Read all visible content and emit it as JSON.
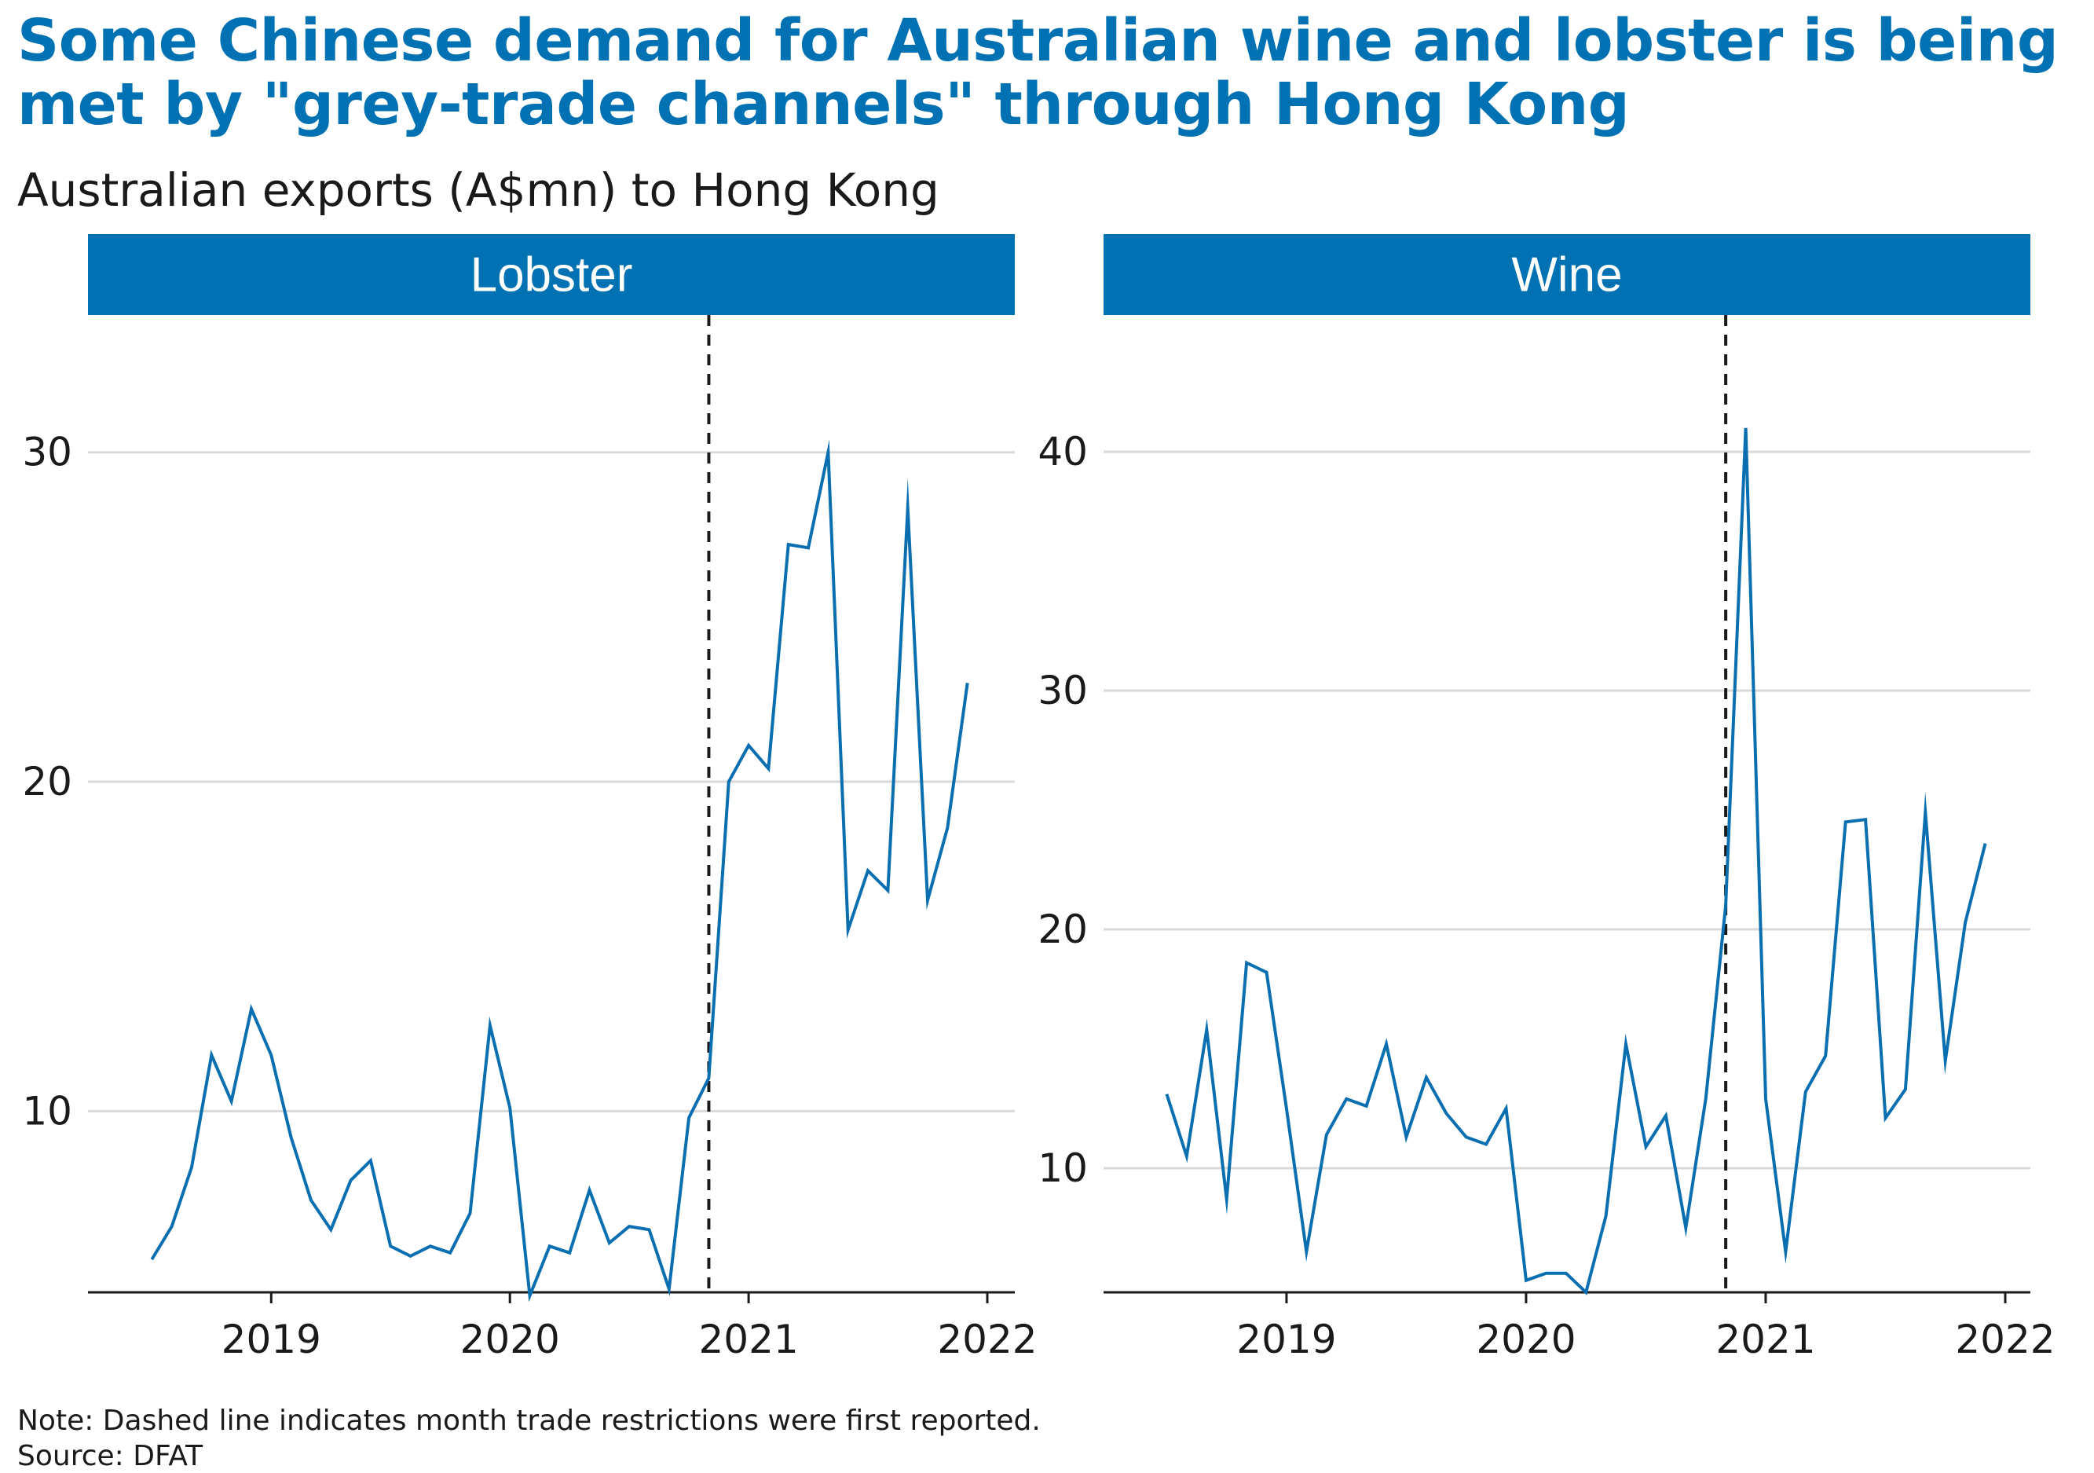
{
  "title": "Some Chinese demand for Australian wine and lobster is being met by \"grey-trade channels\" through Hong Kong",
  "subtitle": "Australian exports (A$mn) to Hong Kong",
  "note": "Note: Dashed line indicates month trade restrictions were first reported.",
  "source": "Source: DFAT",
  "colors": {
    "accent": "#0071b2",
    "line": "#0a6fb0",
    "grid": "#d9d9d9",
    "text": "#1a1a1a"
  },
  "chart_data": [
    {
      "type": "line",
      "panel_title": "Lobster",
      "x_ticks": [
        "2019",
        "2020",
        "2021",
        "2022"
      ],
      "y_ticks": [
        10,
        20,
        30
      ],
      "ylim": [
        4.5,
        34
      ],
      "xlim": [
        "2018-06",
        "2022-01"
      ],
      "grid": "horizontal",
      "restriction_date": "2020-11",
      "series": [
        {
          "x": [
            "2018-07",
            "2018-08",
            "2018-09",
            "2018-10",
            "2018-11",
            "2018-12",
            "2019-01",
            "2019-02",
            "2019-03",
            "2019-04",
            "2019-05",
            "2019-06",
            "2019-07",
            "2019-08",
            "2019-09",
            "2019-10",
            "2019-11",
            "2019-12",
            "2020-01",
            "2020-02",
            "2020-03",
            "2020-04",
            "2020-05",
            "2020-06",
            "2020-07",
            "2020-08",
            "2020-09",
            "2020-10",
            "2020-11",
            "2020-12",
            "2021-01",
            "2021-02",
            "2021-03",
            "2021-04",
            "2021-05",
            "2021-06",
            "2021-07",
            "2021-08",
            "2021-09",
            "2021-10",
            "2021-11",
            "2021-12"
          ],
          "y": [
            5.5,
            6.5,
            8.3,
            11.7,
            10.3,
            13.1,
            11.7,
            9.2,
            7.3,
            6.4,
            7.9,
            8.5,
            5.9,
            5.6,
            5.9,
            5.7,
            6.9,
            12.6,
            10.1,
            4.4,
            5.9,
            5.7,
            7.6,
            6.0,
            6.5,
            6.4,
            4.6,
            9.8,
            11.0,
            20.0,
            21.1,
            20.4,
            27.2,
            27.1,
            30.0,
            15.5,
            17.3,
            16.7,
            28.3,
            16.4,
            18.6,
            23.0
          ]
        }
      ]
    },
    {
      "type": "line",
      "panel_title": "Wine",
      "x_ticks": [
        "2019",
        "2020",
        "2021",
        "2022"
      ],
      "y_ticks": [
        10,
        20,
        30,
        40
      ],
      "ylim": [
        4.8,
        45.5
      ],
      "xlim": [
        "2018-06",
        "2022-01"
      ],
      "grid": "horizontal",
      "restriction_date": "2020-11",
      "series": [
        {
          "x": [
            "2018-07",
            "2018-08",
            "2018-09",
            "2018-10",
            "2018-11",
            "2018-12",
            "2019-01",
            "2019-02",
            "2019-03",
            "2019-04",
            "2019-05",
            "2019-06",
            "2019-07",
            "2019-08",
            "2019-09",
            "2019-10",
            "2019-11",
            "2019-12",
            "2020-01",
            "2020-02",
            "2020-03",
            "2020-04",
            "2020-05",
            "2020-06",
            "2020-07",
            "2020-08",
            "2020-09",
            "2020-10",
            "2020-11",
            "2020-12",
            "2021-01",
            "2021-02",
            "2021-03",
            "2021-04",
            "2021-05",
            "2021-06",
            "2021-07",
            "2021-08",
            "2021-09",
            "2021-10",
            "2021-11",
            "2021-12"
          ],
          "y": [
            13.1,
            10.5,
            15.8,
            8.7,
            18.6,
            18.2,
            12.5,
            6.5,
            11.4,
            12.9,
            12.6,
            15.2,
            11.3,
            13.8,
            12.3,
            11.3,
            11.0,
            12.5,
            5.3,
            5.6,
            5.6,
            4.8,
            8.0,
            15.2,
            10.9,
            12.2,
            7.5,
            12.9,
            21.0,
            41.0,
            12.9,
            6.5,
            13.2,
            14.7,
            24.5,
            24.6,
            12.1,
            13.3,
            24.9,
            14.5,
            20.3,
            23.6
          ]
        }
      ]
    }
  ]
}
